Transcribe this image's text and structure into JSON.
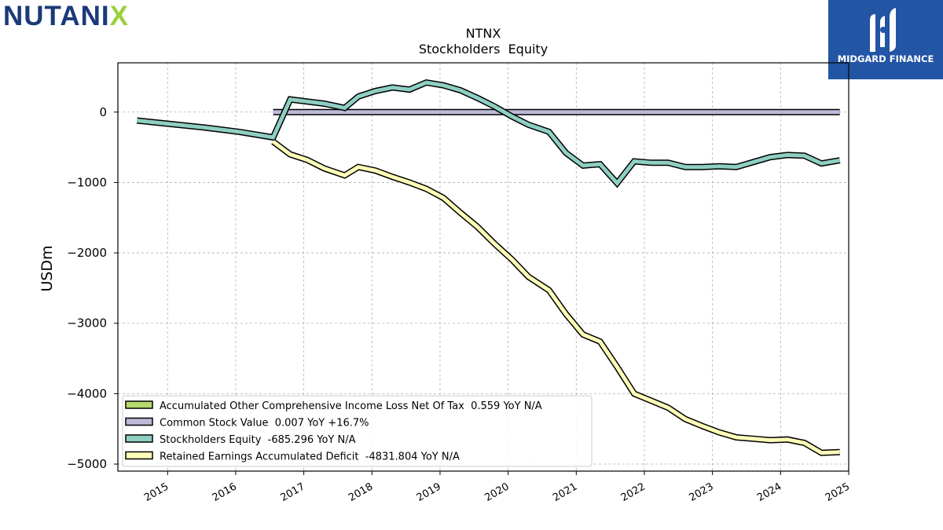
{
  "header": {
    "company_logo": "NUTANI",
    "company_logo_x": "X",
    "brand_name": "MIDGARD FINANCE"
  },
  "chart_data": {
    "type": "line",
    "title": "NTNX",
    "subtitle": "Stockholders  Equity",
    "ylabel": "USDm",
    "xlabel": "",
    "ylim": [
      -5100,
      700
    ],
    "xlim": [
      2014.27,
      2025.0
    ],
    "grid": true,
    "legend_position": "bottom-left",
    "yticks": [
      0,
      -1000,
      -2000,
      -3000,
      -4000,
      -5000
    ],
    "ytick_labels": [
      "0",
      "−1000",
      "−2000",
      "−3000",
      "−4000",
      "−5000"
    ],
    "xticks": [
      2015,
      2016,
      2017,
      2018,
      2019,
      2020,
      2021,
      2022,
      2023,
      2024,
      2025
    ],
    "xtick_labels": [
      "2015",
      "2016",
      "2017",
      "2018",
      "2019",
      "2020",
      "2021",
      "2022",
      "2023",
      "2024",
      "2025"
    ],
    "series": [
      {
        "name": "Accumulated Other Comprehensive Income Loss Net Of Tax  0.559 YoY N/A",
        "color": "#b5d96c",
        "points": []
      },
      {
        "name": "Common Stock Value  0.007 YoY +16.7%",
        "color": "#bdb9d9",
        "points": [
          [
            2016.55,
            0
          ],
          [
            2016.8,
            0
          ],
          [
            2017.5,
            0
          ],
          [
            2018.5,
            0
          ],
          [
            2019.5,
            0
          ],
          [
            2020.5,
            0
          ],
          [
            2021.5,
            0
          ],
          [
            2022.5,
            0
          ],
          [
            2023.5,
            0
          ],
          [
            2024.5,
            0
          ],
          [
            2024.87,
            0
          ]
        ]
      },
      {
        "name": "Stockholders Equity  -685.296 YoY N/A",
        "color": "#8ecfc3",
        "points": [
          [
            2014.55,
            -120
          ],
          [
            2015.05,
            -170
          ],
          [
            2015.55,
            -220
          ],
          [
            2016.05,
            -280
          ],
          [
            2016.55,
            -360
          ],
          [
            2016.8,
            180
          ],
          [
            2017.05,
            150
          ],
          [
            2017.3,
            120
          ],
          [
            2017.6,
            60
          ],
          [
            2017.8,
            220
          ],
          [
            2018.05,
            300
          ],
          [
            2018.3,
            350
          ],
          [
            2018.55,
            320
          ],
          [
            2018.8,
            420
          ],
          [
            2019.05,
            380
          ],
          [
            2019.3,
            310
          ],
          [
            2019.55,
            200
          ],
          [
            2019.8,
            80
          ],
          [
            2020.05,
            -60
          ],
          [
            2020.3,
            -180
          ],
          [
            2020.6,
            -280
          ],
          [
            2020.85,
            -580
          ],
          [
            2021.1,
            -760
          ],
          [
            2021.35,
            -740
          ],
          [
            2021.6,
            -1010
          ],
          [
            2021.85,
            -700
          ],
          [
            2022.1,
            -720
          ],
          [
            2022.35,
            -720
          ],
          [
            2022.6,
            -780
          ],
          [
            2022.85,
            -780
          ],
          [
            2023.1,
            -770
          ],
          [
            2023.35,
            -780
          ],
          [
            2023.6,
            -710
          ],
          [
            2023.85,
            -640
          ],
          [
            2024.1,
            -610
          ],
          [
            2024.35,
            -620
          ],
          [
            2024.6,
            -730
          ],
          [
            2024.87,
            -685
          ]
        ]
      },
      {
        "name": "Retained Earnings Accumulated Deficit  -4831.804 YoY N/A",
        "color": "#fdfcb8",
        "points": [
          [
            2016.55,
            -420
          ],
          [
            2016.8,
            -600
          ],
          [
            2017.05,
            -680
          ],
          [
            2017.3,
            -800
          ],
          [
            2017.6,
            -900
          ],
          [
            2017.8,
            -780
          ],
          [
            2018.05,
            -830
          ],
          [
            2018.3,
            -920
          ],
          [
            2018.55,
            -1000
          ],
          [
            2018.8,
            -1090
          ],
          [
            2019.05,
            -1220
          ],
          [
            2019.3,
            -1430
          ],
          [
            2019.55,
            -1630
          ],
          [
            2019.8,
            -1870
          ],
          [
            2020.05,
            -2090
          ],
          [
            2020.3,
            -2340
          ],
          [
            2020.6,
            -2530
          ],
          [
            2020.85,
            -2870
          ],
          [
            2021.1,
            -3160
          ],
          [
            2021.35,
            -3260
          ],
          [
            2021.6,
            -3620
          ],
          [
            2021.85,
            -4000
          ],
          [
            2022.1,
            -4100
          ],
          [
            2022.35,
            -4200
          ],
          [
            2022.6,
            -4360
          ],
          [
            2022.85,
            -4460
          ],
          [
            2023.1,
            -4550
          ],
          [
            2023.35,
            -4620
          ],
          [
            2023.6,
            -4640
          ],
          [
            2023.85,
            -4660
          ],
          [
            2024.1,
            -4650
          ],
          [
            2024.35,
            -4700
          ],
          [
            2024.6,
            -4840
          ],
          [
            2024.87,
            -4830
          ]
        ]
      }
    ]
  }
}
